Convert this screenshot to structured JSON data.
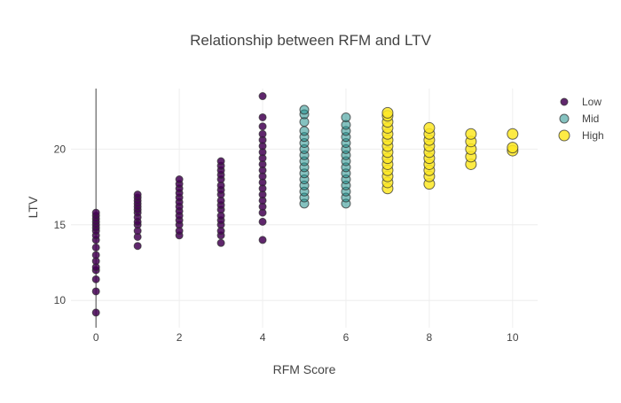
{
  "chart_data": {
    "type": "scatter",
    "title": "Relationship between RFM and LTV",
    "xlabel": "RFM Score",
    "ylabel": "LTV",
    "xlim": [
      -0.6,
      10.6
    ],
    "ylim": [
      8.2,
      24.0
    ],
    "xticks": [
      0,
      2,
      4,
      6,
      8,
      10
    ],
    "yticks": [
      10,
      15,
      20
    ],
    "grid": true,
    "legend_position": "top-right",
    "series": [
      {
        "name": "Low",
        "color": "#440154",
        "points": [
          [
            0,
            9.2
          ],
          [
            0,
            10.6
          ],
          [
            0,
            11.4
          ],
          [
            0,
            12.0
          ],
          [
            0,
            12.2
          ],
          [
            0,
            12.6
          ],
          [
            0,
            13.0
          ],
          [
            0,
            13.5
          ],
          [
            0,
            14.0
          ],
          [
            0,
            14.3
          ],
          [
            0,
            14.6
          ],
          [
            0,
            14.8
          ],
          [
            0,
            15.0
          ],
          [
            0,
            15.2
          ],
          [
            0,
            15.4
          ],
          [
            0,
            15.6
          ],
          [
            0,
            15.8
          ],
          [
            1,
            13.6
          ],
          [
            1,
            14.2
          ],
          [
            1,
            14.6
          ],
          [
            1,
            15.0
          ],
          [
            1,
            15.2
          ],
          [
            1,
            15.5
          ],
          [
            1,
            15.8
          ],
          [
            1,
            16.0
          ],
          [
            1,
            16.2
          ],
          [
            1,
            16.4
          ],
          [
            1,
            16.6
          ],
          [
            1,
            16.8
          ],
          [
            1,
            17.0
          ],
          [
            2,
            14.3
          ],
          [
            2,
            14.6
          ],
          [
            2,
            15.0
          ],
          [
            2,
            15.3
          ],
          [
            2,
            15.6
          ],
          [
            2,
            15.9
          ],
          [
            2,
            16.2
          ],
          [
            2,
            16.5
          ],
          [
            2,
            16.8
          ],
          [
            2,
            17.1
          ],
          [
            2,
            17.4
          ],
          [
            2,
            17.7
          ],
          [
            2,
            18.0
          ],
          [
            3,
            13.8
          ],
          [
            3,
            14.3
          ],
          [
            3,
            14.6
          ],
          [
            3,
            15.0
          ],
          [
            3,
            15.3
          ],
          [
            3,
            15.6
          ],
          [
            3,
            16.0
          ],
          [
            3,
            16.3
          ],
          [
            3,
            16.6
          ],
          [
            3,
            17.0
          ],
          [
            3,
            17.3
          ],
          [
            3,
            17.6
          ],
          [
            3,
            18.0
          ],
          [
            3,
            18.3
          ],
          [
            3,
            18.6
          ],
          [
            3,
            18.9
          ],
          [
            3,
            19.2
          ],
          [
            4,
            14.0
          ],
          [
            4,
            15.2
          ],
          [
            4,
            15.8
          ],
          [
            4,
            16.2
          ],
          [
            4,
            16.6
          ],
          [
            4,
            17.0
          ],
          [
            4,
            17.4
          ],
          [
            4,
            17.8
          ],
          [
            4,
            18.2
          ],
          [
            4,
            18.6
          ],
          [
            4,
            19.0
          ],
          [
            4,
            19.4
          ],
          [
            4,
            19.8
          ],
          [
            4,
            20.2
          ],
          [
            4,
            20.6
          ],
          [
            4,
            21.0
          ],
          [
            4,
            21.5
          ],
          [
            4,
            22.1
          ],
          [
            4,
            23.5
          ]
        ]
      },
      {
        "name": "Mid",
        "color": "#21908d",
        "points": [
          [
            5,
            16.4
          ],
          [
            5,
            16.8
          ],
          [
            5,
            17.2
          ],
          [
            5,
            17.6
          ],
          [
            5,
            18.0
          ],
          [
            5,
            18.4
          ],
          [
            5,
            18.8
          ],
          [
            5,
            19.2
          ],
          [
            5,
            19.6
          ],
          [
            5,
            20.0
          ],
          [
            5,
            20.4
          ],
          [
            5,
            20.8
          ],
          [
            5,
            21.2
          ],
          [
            5,
            21.8
          ],
          [
            5,
            22.3
          ],
          [
            5,
            22.6
          ],
          [
            6,
            16.4
          ],
          [
            6,
            16.8
          ],
          [
            6,
            17.2
          ],
          [
            6,
            17.6
          ],
          [
            6,
            18.0
          ],
          [
            6,
            18.4
          ],
          [
            6,
            18.8
          ],
          [
            6,
            19.2
          ],
          [
            6,
            19.6
          ],
          [
            6,
            20.0
          ],
          [
            6,
            20.4
          ],
          [
            6,
            20.8
          ],
          [
            6,
            21.2
          ],
          [
            6,
            21.6
          ],
          [
            6,
            22.1
          ]
        ]
      },
      {
        "name": "High",
        "color": "#fde725",
        "points": [
          [
            7,
            17.4
          ],
          [
            7,
            17.8
          ],
          [
            7,
            18.2
          ],
          [
            7,
            18.6
          ],
          [
            7,
            19.0
          ],
          [
            7,
            19.4
          ],
          [
            7,
            19.8
          ],
          [
            7,
            20.2
          ],
          [
            7,
            20.6
          ],
          [
            7,
            21.0
          ],
          [
            7,
            21.4
          ],
          [
            7,
            21.8
          ],
          [
            7,
            22.2
          ],
          [
            7,
            22.4
          ],
          [
            8,
            17.7
          ],
          [
            8,
            18.2
          ],
          [
            8,
            18.6
          ],
          [
            8,
            19.0
          ],
          [
            8,
            19.4
          ],
          [
            8,
            19.8
          ],
          [
            8,
            20.2
          ],
          [
            8,
            20.6
          ],
          [
            8,
            21.0
          ],
          [
            8,
            21.4
          ],
          [
            9,
            19.0
          ],
          [
            9,
            19.5
          ],
          [
            9,
            20.0
          ],
          [
            9,
            20.5
          ],
          [
            9,
            21.0
          ],
          [
            10,
            19.9
          ],
          [
            10,
            20.1
          ],
          [
            10,
            21.0
          ]
        ]
      }
    ]
  }
}
